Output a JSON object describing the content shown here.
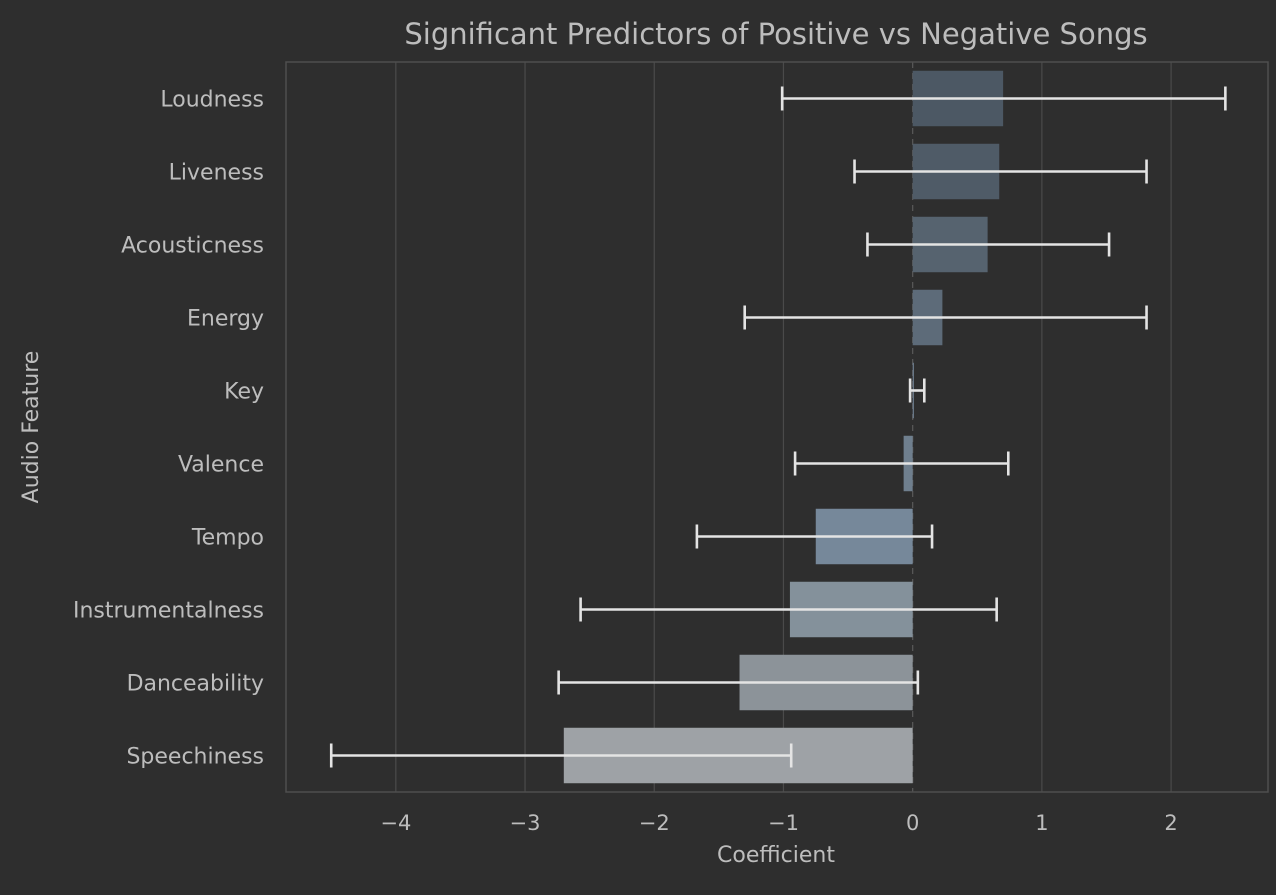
{
  "chart_data": {
    "type": "bar",
    "orientation": "horizontal",
    "title": "Significant Predictors of Positive vs Negative Songs",
    "xlabel": "Coefficient",
    "ylabel": "Audio Feature",
    "xlim": [
      -4.85,
      2.75
    ],
    "xticks": [
      -4,
      -3,
      -2,
      -1,
      0,
      1,
      2
    ],
    "xtick_labels": [
      "−4",
      "−3",
      "−2",
      "−1",
      "0",
      "1",
      "2"
    ],
    "grid": "vertical",
    "categories": [
      "Loudness",
      "Liveness",
      "Acousticness",
      "Energy",
      "Key",
      "Valence",
      "Tempo",
      "Instrumentalness",
      "Danceability",
      "Speechiness"
    ],
    "values": [
      0.7,
      0.67,
      0.58,
      0.23,
      0.01,
      -0.07,
      -0.75,
      -0.95,
      -1.34,
      -2.7
    ],
    "error_low": [
      -1.01,
      -0.45,
      -0.35,
      -1.3,
      -0.02,
      -0.91,
      -1.67,
      -2.57,
      -2.74,
      -4.5
    ],
    "error_high": [
      2.42,
      1.81,
      1.52,
      1.81,
      0.09,
      0.74,
      0.15,
      0.65,
      0.04,
      -0.94
    ],
    "bar_colors": [
      "#4c5864",
      "#4f5b67",
      "#56636f",
      "#5d6b79",
      "#6b7a89",
      "#6f7f8e",
      "#76889a",
      "#84919b",
      "#8c9399",
      "#9ea2a6"
    ],
    "colors": {
      "background": "#2e2e2e",
      "axes_border": "#4f4f4f",
      "grid": "#4a4a4a",
      "text": "#bdbdbd",
      "error_bar": "#e4e4e4",
      "zero_line": "#5a5a5a"
    }
  }
}
